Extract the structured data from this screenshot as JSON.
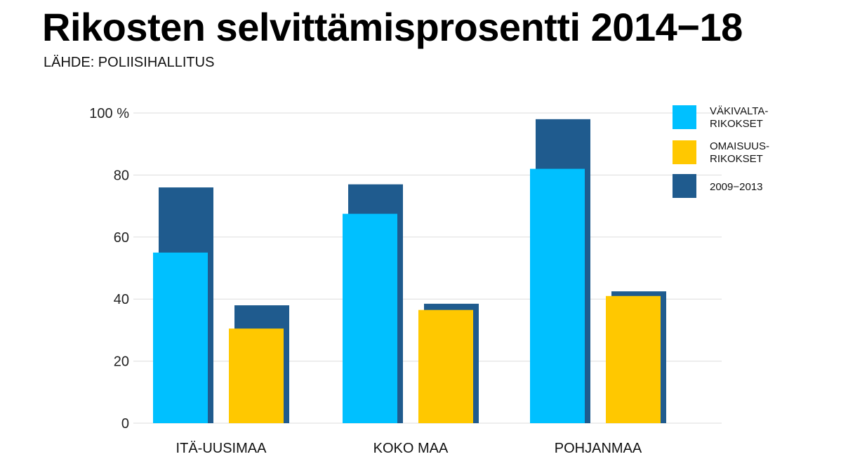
{
  "chart_data": {
    "type": "bar",
    "title": "Rikosten selvittämisprosentti 2014−18",
    "subtitle": "LÄHDE: POLIISIHALLITUS",
    "categories": [
      "ITÄ-UUSIMAA",
      "KOKO MAA",
      "POHJANMAA"
    ],
    "series": [
      {
        "name_lines": [
          "VÄKIVALTA-",
          "RIKOKSET"
        ],
        "key": "vakivalta",
        "color": "#00c0ff",
        "values": [
          55,
          67.5,
          82
        ],
        "previous": [
          76,
          77,
          98
        ]
      },
      {
        "name_lines": [
          "OMAISUUS-",
          "RIKOKSET"
        ],
        "key": "omaisuus",
        "color": "#ffc800",
        "values": [
          30.5,
          36.5,
          41
        ],
        "previous": [
          38,
          38.5,
          42.5
        ]
      }
    ],
    "previous_period": {
      "name": "2009−2013",
      "color": "#1f5b8e"
    },
    "ylim": [
      0,
      100
    ],
    "yticks": [
      {
        "value": 0,
        "label": "0"
      },
      {
        "value": 20,
        "label": "20"
      },
      {
        "value": 40,
        "label": "40"
      },
      {
        "value": 60,
        "label": "60"
      },
      {
        "value": 80,
        "label": "80"
      },
      {
        "value": 100,
        "label": "100 %"
      }
    ],
    "grid": true,
    "legend_position": "top-right",
    "xlabel": "",
    "ylabel": ""
  }
}
